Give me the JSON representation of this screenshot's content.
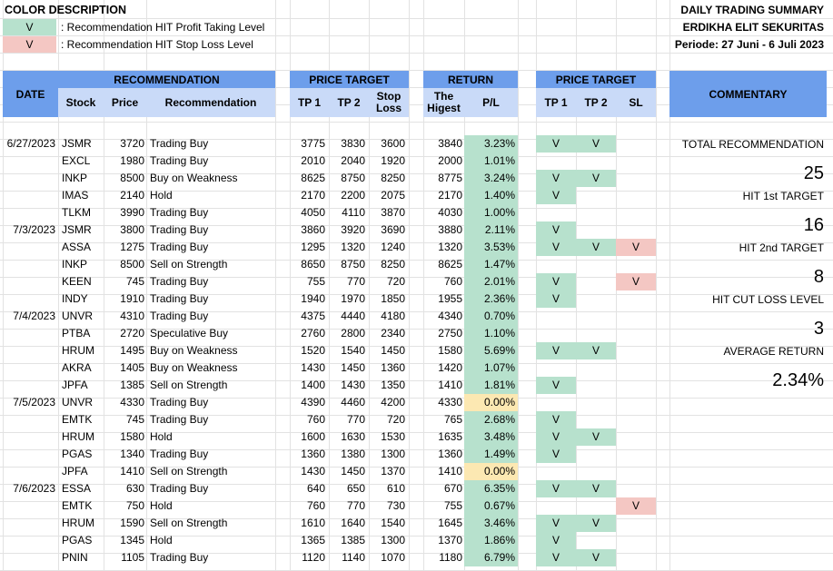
{
  "legend": {
    "title": "COLOR DESCRIPTION",
    "items": [
      {
        "symbol": "V",
        "text": ": Recommendation HIT Profit Taking Level",
        "color": "#b7e1cd"
      },
      {
        "symbol": "V",
        "text": ": Recommendation HIT Stop Loss Level",
        "color": "#f4c7c3"
      }
    ]
  },
  "report": {
    "title": "DAILY TRADING SUMMARY",
    "company": "ERDIKHA ELIT SEKURITAS",
    "period": "Periode: 27 Juni - 6 Juli 2023"
  },
  "headers": {
    "date": "DATE",
    "recommendation_group": "RECOMMENDATION",
    "stock": "Stock",
    "price": "Price",
    "recommendation": "Recommendation",
    "price_target_group": "PRICE TARGET",
    "tp1": "TP 1",
    "tp2": "TP 2",
    "stop_loss": "Stop Loss",
    "return_group": "RETURN",
    "the_highest": "The Higest",
    "pl": "P/L",
    "hit_group": "PRICE TARGET",
    "hit_tp1": "TP 1",
    "hit_tp2": "TP 2",
    "hit_sl": "SL",
    "commentary": "COMMENTARY"
  },
  "colors": {
    "header_dark": "#6d9eeb",
    "header_light": "#c9daf8",
    "hit_green": "#b7e1cd",
    "hit_red": "#f4c7c3",
    "zero_yellow": "#fce8b2"
  },
  "rows": [
    {
      "date": "6/27/2023",
      "stock": "JSMR",
      "price": "3720",
      "rec": "Trading Buy",
      "tp1": "3775",
      "tp2": "3830",
      "sl": "3600",
      "high": "3840",
      "pl": "3.23%",
      "pl_color": "green",
      "h1": "V",
      "h2": "V",
      "hs": ""
    },
    {
      "date": "",
      "stock": "EXCL",
      "price": "1980",
      "rec": "Trading Buy",
      "tp1": "2010",
      "tp2": "2040",
      "sl": "1920",
      "high": "2000",
      "pl": "1.01%",
      "pl_color": "green",
      "h1": "",
      "h2": "",
      "hs": ""
    },
    {
      "date": "",
      "stock": "INKP",
      "price": "8500",
      "rec": "Buy on Weakness",
      "tp1": "8625",
      "tp2": "8750",
      "sl": "8250",
      "high": "8775",
      "pl": "3.24%",
      "pl_color": "green",
      "h1": "V",
      "h2": "V",
      "hs": ""
    },
    {
      "date": "",
      "stock": "IMAS",
      "price": "2140",
      "rec": "Hold",
      "tp1": "2170",
      "tp2": "2200",
      "sl": "2075",
      "high": "2170",
      "pl": "1.40%",
      "pl_color": "green",
      "h1": "V",
      "h2": "",
      "hs": ""
    },
    {
      "date": "",
      "stock": "TLKM",
      "price": "3990",
      "rec": "Trading Buy",
      "tp1": "4050",
      "tp2": "4110",
      "sl": "3870",
      "high": "4030",
      "pl": "1.00%",
      "pl_color": "green",
      "h1": "",
      "h2": "",
      "hs": ""
    },
    {
      "date": "7/3/2023",
      "stock": "JSMR",
      "price": "3800",
      "rec": "Trading Buy",
      "tp1": "3860",
      "tp2": "3920",
      "sl": "3690",
      "high": "3880",
      "pl": "2.11%",
      "pl_color": "green",
      "h1": "V",
      "h2": "",
      "hs": ""
    },
    {
      "date": "",
      "stock": "ASSA",
      "price": "1275",
      "rec": "Trading Buy",
      "tp1": "1295",
      "tp2": "1320",
      "sl": "1240",
      "high": "1320",
      "pl": "3.53%",
      "pl_color": "green",
      "h1": "V",
      "h2": "V",
      "hs": "V"
    },
    {
      "date": "",
      "stock": "INKP",
      "price": "8500",
      "rec": "Sell on Strength",
      "tp1": "8650",
      "tp2": "8750",
      "sl": "8250",
      "high": "8625",
      "pl": "1.47%",
      "pl_color": "green",
      "h1": "",
      "h2": "",
      "hs": ""
    },
    {
      "date": "",
      "stock": "KEEN",
      "price": "745",
      "rec": "Trading Buy",
      "tp1": "755",
      "tp2": "770",
      "sl": "720",
      "high": "760",
      "pl": "2.01%",
      "pl_color": "green",
      "h1": "V",
      "h2": "",
      "hs": "V"
    },
    {
      "date": "",
      "stock": "INDY",
      "price": "1910",
      "rec": "Trading Buy",
      "tp1": "1940",
      "tp2": "1970",
      "sl": "1850",
      "high": "1955",
      "pl": "2.36%",
      "pl_color": "green",
      "h1": "V",
      "h2": "",
      "hs": ""
    },
    {
      "date": "7/4/2023",
      "stock": "UNVR",
      "price": "4310",
      "rec": "Trading Buy",
      "tp1": "4375",
      "tp2": "4440",
      "sl": "4180",
      "high": "4340",
      "pl": "0.70%",
      "pl_color": "green",
      "h1": "",
      "h2": "",
      "hs": ""
    },
    {
      "date": "",
      "stock": "PTBA",
      "price": "2720",
      "rec": "Speculative Buy",
      "tp1": "2760",
      "tp2": "2800",
      "sl": "2340",
      "high": "2750",
      "pl": "1.10%",
      "pl_color": "green",
      "h1": "",
      "h2": "",
      "hs": ""
    },
    {
      "date": "",
      "stock": "HRUM",
      "price": "1495",
      "rec": "Buy on Weakness",
      "tp1": "1520",
      "tp2": "1540",
      "sl": "1450",
      "high": "1580",
      "pl": "5.69%",
      "pl_color": "green",
      "h1": "V",
      "h2": "V",
      "hs": ""
    },
    {
      "date": "",
      "stock": "AKRA",
      "price": "1405",
      "rec": "Buy on Weakness",
      "tp1": "1430",
      "tp2": "1450",
      "sl": "1360",
      "high": "1420",
      "pl": "1.07%",
      "pl_color": "green",
      "h1": "",
      "h2": "",
      "hs": ""
    },
    {
      "date": "",
      "stock": "JPFA",
      "price": "1385",
      "rec": "Sell on Strength",
      "tp1": "1400",
      "tp2": "1430",
      "sl": "1350",
      "high": "1410",
      "pl": "1.81%",
      "pl_color": "green",
      "h1": "V",
      "h2": "",
      "hs": ""
    },
    {
      "date": "7/5/2023",
      "stock": "UNVR",
      "price": "4330",
      "rec": "Trading Buy",
      "tp1": "4390",
      "tp2": "4460",
      "sl": "4200",
      "high": "4330",
      "pl": "0.00%",
      "pl_color": "yellow",
      "h1": "",
      "h2": "",
      "hs": ""
    },
    {
      "date": "",
      "stock": "EMTK",
      "price": "745",
      "rec": "Trading Buy",
      "tp1": "760",
      "tp2": "770",
      "sl": "720",
      "high": "765",
      "pl": "2.68%",
      "pl_color": "green",
      "h1": "V",
      "h2": "",
      "hs": ""
    },
    {
      "date": "",
      "stock": "HRUM",
      "price": "1580",
      "rec": "Hold",
      "tp1": "1600",
      "tp2": "1630",
      "sl": "1530",
      "high": "1635",
      "pl": "3.48%",
      "pl_color": "green",
      "h1": "V",
      "h2": "V",
      "hs": ""
    },
    {
      "date": "",
      "stock": "PGAS",
      "price": "1340",
      "rec": "Trading Buy",
      "tp1": "1360",
      "tp2": "1380",
      "sl": "1300",
      "high": "1360",
      "pl": "1.49%",
      "pl_color": "green",
      "h1": "V",
      "h2": "",
      "hs": ""
    },
    {
      "date": "",
      "stock": "JPFA",
      "price": "1410",
      "rec": "Sell on Strength",
      "tp1": "1430",
      "tp2": "1450",
      "sl": "1370",
      "high": "1410",
      "pl": "0.00%",
      "pl_color": "yellow",
      "h1": "",
      "h2": "",
      "hs": ""
    },
    {
      "date": "7/6/2023",
      "stock": "ESSA",
      "price": "630",
      "rec": "Trading Buy",
      "tp1": "640",
      "tp2": "650",
      "sl": "610",
      "high": "670",
      "pl": "6.35%",
      "pl_color": "green",
      "h1": "V",
      "h2": "V",
      "hs": ""
    },
    {
      "date": "",
      "stock": "EMTK",
      "price": "750",
      "rec": "Hold",
      "tp1": "760",
      "tp2": "770",
      "sl": "730",
      "high": "755",
      "pl": "0.67%",
      "pl_color": "green",
      "h1": "",
      "h2": "",
      "hs": "V"
    },
    {
      "date": "",
      "stock": "HRUM",
      "price": "1590",
      "rec": "Sell on Strength",
      "tp1": "1610",
      "tp2": "1640",
      "sl": "1540",
      "high": "1645",
      "pl": "3.46%",
      "pl_color": "green",
      "h1": "V",
      "h2": "V",
      "hs": ""
    },
    {
      "date": "",
      "stock": "PGAS",
      "price": "1345",
      "rec": "Hold",
      "tp1": "1365",
      "tp2": "1385",
      "sl": "1300",
      "high": "1370",
      "pl": "1.86%",
      "pl_color": "green",
      "h1": "V",
      "h2": "",
      "hs": ""
    },
    {
      "date": "",
      "stock": "PNIN",
      "price": "1105",
      "rec": "Trading Buy",
      "tp1": "1120",
      "tp2": "1140",
      "sl": "1070",
      "high": "1180",
      "pl": "6.79%",
      "pl_color": "green",
      "h1": "V",
      "h2": "V",
      "hs": ""
    }
  ],
  "commentary": {
    "total_label": "TOTAL RECOMMENDATION",
    "total_value": "25",
    "tp1_label": "HIT 1st TARGET",
    "tp1_value": "16",
    "tp2_label": "HIT 2nd TARGET",
    "tp2_value": "8",
    "cutloss_label": "HIT CUT LOSS LEVEL",
    "cutloss_value": "3",
    "avg_label": "AVERAGE RETURN",
    "avg_value": "2.34%"
  }
}
